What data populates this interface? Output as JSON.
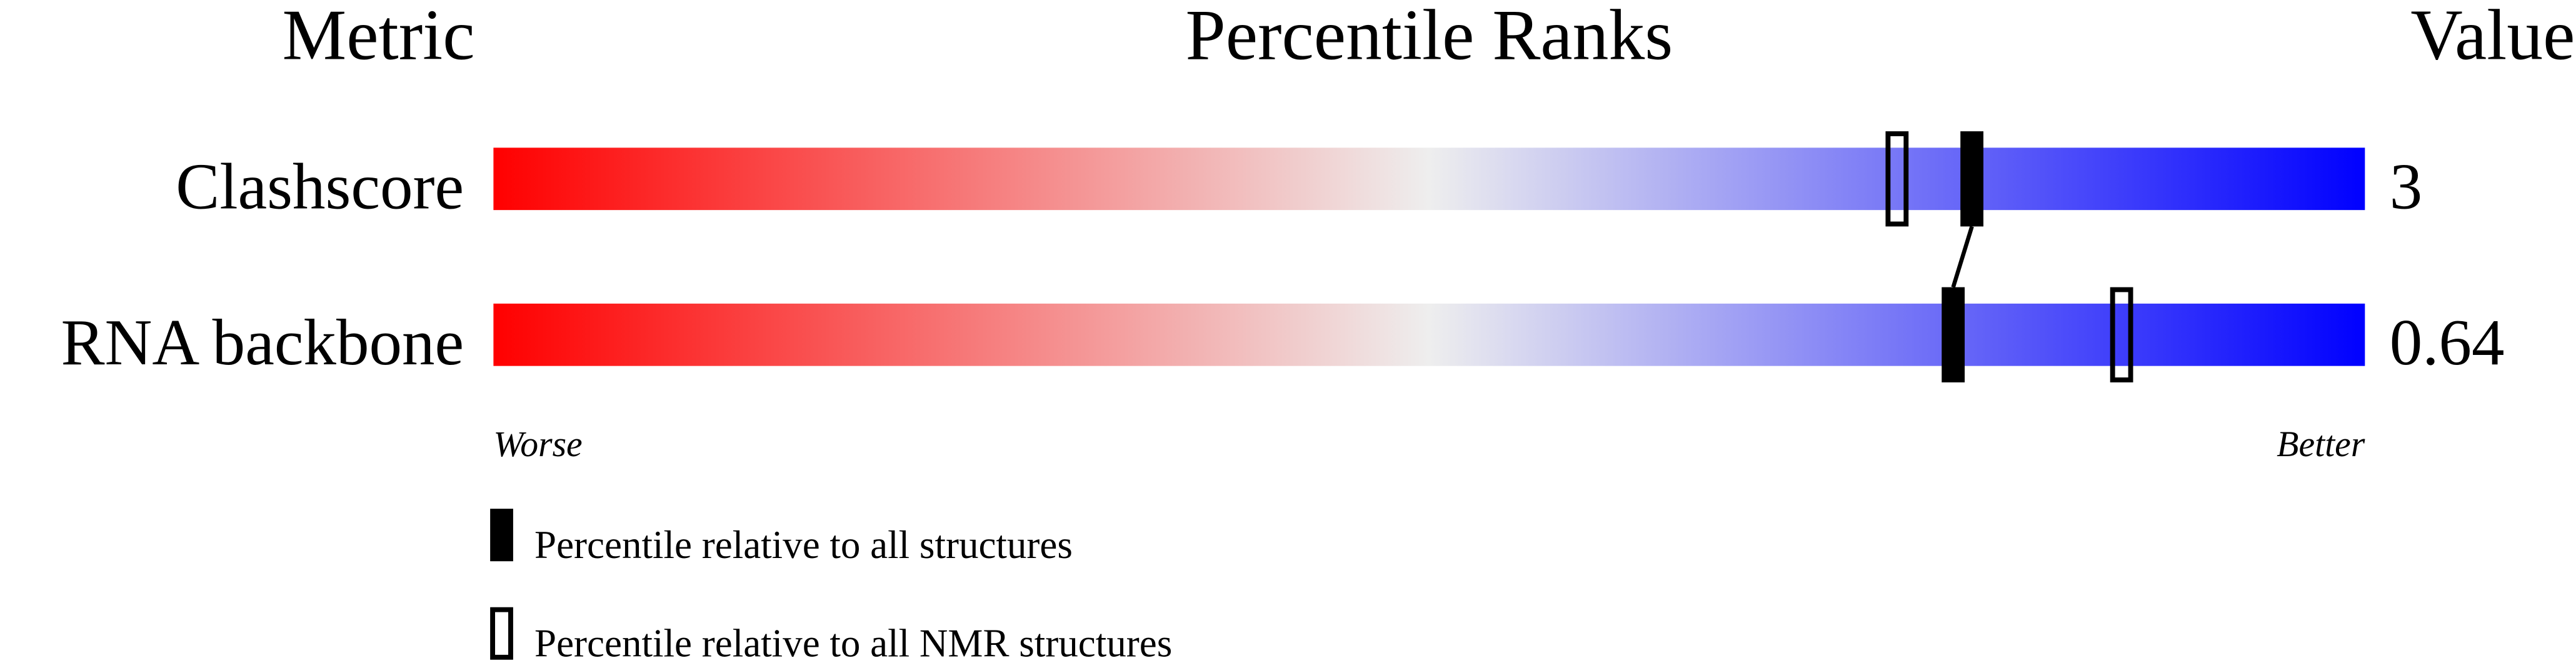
{
  "chart_data": {
    "type": "percentile-rank",
    "headers": {
      "metric": "Metric",
      "ranks": "Percentile Ranks",
      "value": "Value"
    },
    "metrics": [
      {
        "name": "Clashscore",
        "value": "3",
        "percentile_all": 79,
        "percentile_nmr": 75
      },
      {
        "name": "RNA backbone",
        "value": "0.64",
        "percentile_all": 78,
        "percentile_nmr": 87
      }
    ],
    "axis": {
      "range": [
        0,
        100
      ],
      "left_label": "Worse",
      "right_label": "Better"
    },
    "legend": {
      "all": "Percentile relative to all structures",
      "nmr": "Percentile relative to all NMR structures"
    },
    "colors": {
      "worse": "#ff0000",
      "middle": "#eeeeee",
      "better": "#0000ff",
      "marker": "#000000"
    }
  }
}
